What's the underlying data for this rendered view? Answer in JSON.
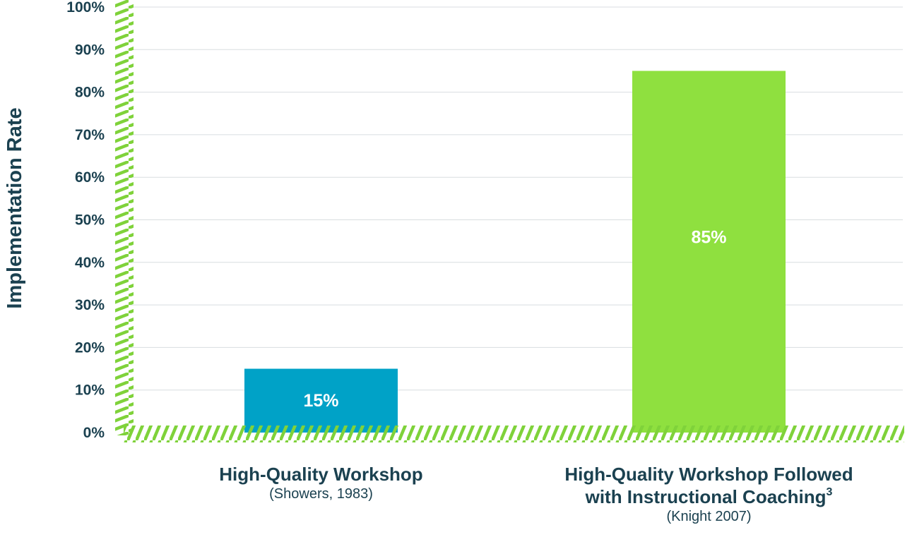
{
  "chart_data": {
    "type": "bar",
    "ylabel": "Implementation Rate",
    "ylim": [
      0,
      100
    ],
    "yticks": [
      0,
      10,
      20,
      30,
      40,
      50,
      60,
      70,
      80,
      90,
      100
    ],
    "ytick_labels": [
      "0%",
      "10%",
      "20%",
      "30%",
      "40%",
      "50%",
      "60%",
      "70%",
      "80%",
      "90%",
      "100%"
    ],
    "grid": true,
    "bars": [
      {
        "value": 15,
        "value_label": "15%",
        "color": "#00a2c7",
        "label_lines": [
          "High-Quality Workshop"
        ],
        "citation": "(Showers, 1983)"
      },
      {
        "value": 85,
        "value_label": "85%",
        "color": "#8fe03f",
        "label_lines": [
          "High-Quality Workshop Followed",
          "with Instructional Coaching"
        ],
        "superscript": "3",
        "citation": "(Knight 2007)"
      }
    ],
    "axis_color": "#7fd23a",
    "grid_color": "#d8dde0",
    "text_color": "#1b4150"
  }
}
